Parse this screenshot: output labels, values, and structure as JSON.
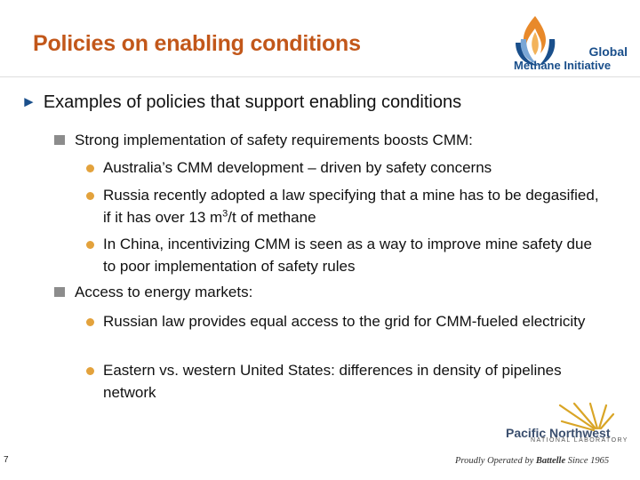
{
  "slide": {
    "title": "Policies on enabling conditions",
    "page_number": "7"
  },
  "logo_gmi": {
    "line1": "Global",
    "line2": "Methane Initiative",
    "icon": "flame-globe-icon",
    "colors": {
      "blue": "#1a4f8b",
      "orange": "#e8892a",
      "light_blue": "#7aa7d6"
    }
  },
  "content": {
    "level1": "Examples of policies that support enabling conditions",
    "groups": [
      {
        "label": "Strong implementation of safety requirements boosts CMM:",
        "items": [
          {
            "text": "Australia’s CMM development – driven by safety concerns"
          },
          {
            "text_before": "Russia recently adopted a law specifying that a mine has to be degasified, if it has over 13 m",
            "sup": "3",
            "text_after": "/t of methane"
          },
          {
            "text": "In China, incentivizing CMM is seen as a way to improve mine safety due to poor implementation of safety rules"
          }
        ]
      },
      {
        "label": "Access to energy markets:",
        "items": [
          {
            "text": "Russian law provides equal access to the grid for CMM-fueled electricity"
          },
          {
            "text": "Eastern vs. western United States: differences in density of pipelines network"
          }
        ]
      }
    ]
  },
  "logo_pnnl": {
    "name": "Pacific Northwest",
    "lab": "NATIONAL LABORATORY",
    "tagline_pre": "Proudly Operated by ",
    "tagline_bold": "Battelle",
    "tagline_post": " Since 1965",
    "icon": "lab-star-icon",
    "colors": {
      "gold": "#d9a526",
      "navy": "#3b4f6e"
    }
  },
  "colors": {
    "title": "#c2571a",
    "level1_arrow": "#1a4f8b",
    "square_bullet": "#8c8c8c",
    "dot_bullet": "#e3a23c"
  }
}
